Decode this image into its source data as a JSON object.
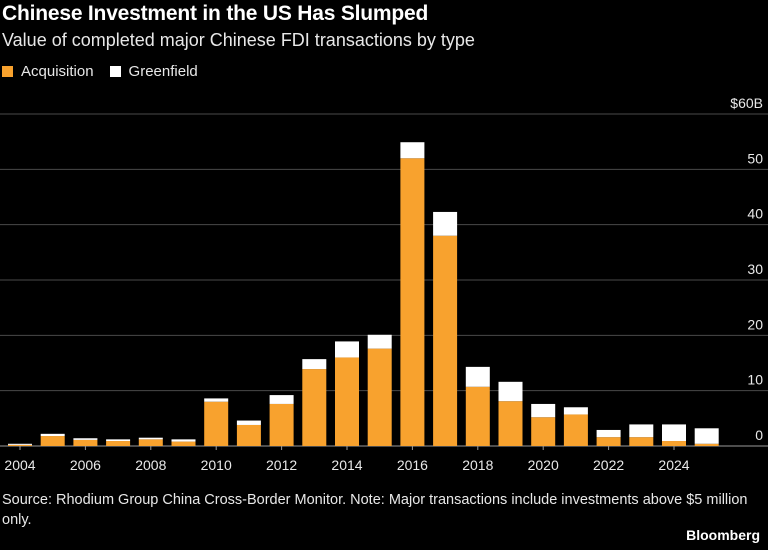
{
  "title": "Chinese Investment in the US Has Slumped",
  "subtitle": "Value of completed major Chinese FDI transactions by type",
  "legend": [
    {
      "label": "Acquisition",
      "color": "#f8a22e"
    },
    {
      "label": "Greenfield",
      "color": "#ffffff"
    }
  ],
  "source": "Source: Rhodium Group China Cross-Border Monitor. Note: Major transactions include investments above $5 million only.",
  "brand": "Bloomberg",
  "chart_data": {
    "type": "bar",
    "stacked": true,
    "categories": [
      "2004",
      "2005",
      "2006",
      "2007",
      "2008",
      "2009",
      "2010",
      "2011",
      "2012",
      "2013",
      "2014",
      "2015",
      "2016",
      "2017",
      "2018",
      "2019",
      "2020",
      "2021",
      "2022",
      "2023",
      "2024",
      "2025"
    ],
    "x_tick_labels": [
      "2004",
      "2006",
      "2008",
      "2010",
      "2012",
      "2014",
      "2016",
      "2018",
      "2020",
      "2022",
      "2024"
    ],
    "y_tick_labels": [
      "0",
      "10",
      "20",
      "30",
      "40",
      "50",
      "$60B"
    ],
    "ylim": [
      0,
      60
    ],
    "grid": true,
    "legend_position": "top-left",
    "series": [
      {
        "name": "Acquisition",
        "color": "#f8a22e",
        "values": [
          0.2,
          1.8,
          1.1,
          0.9,
          1.2,
          0.8,
          8.0,
          3.8,
          7.6,
          13.9,
          16.0,
          17.6,
          52.0,
          38.0,
          10.7,
          8.1,
          5.2,
          5.7,
          1.6,
          1.6,
          0.9,
          0.4
        ]
      },
      {
        "name": "Greenfield",
        "color": "#ffffff",
        "values": [
          0.2,
          0.4,
          0.3,
          0.3,
          0.3,
          0.4,
          0.6,
          0.8,
          1.6,
          1.8,
          2.9,
          2.5,
          2.9,
          4.3,
          3.6,
          3.5,
          2.4,
          1.3,
          1.3,
          2.3,
          3.0,
          2.8
        ]
      }
    ]
  }
}
